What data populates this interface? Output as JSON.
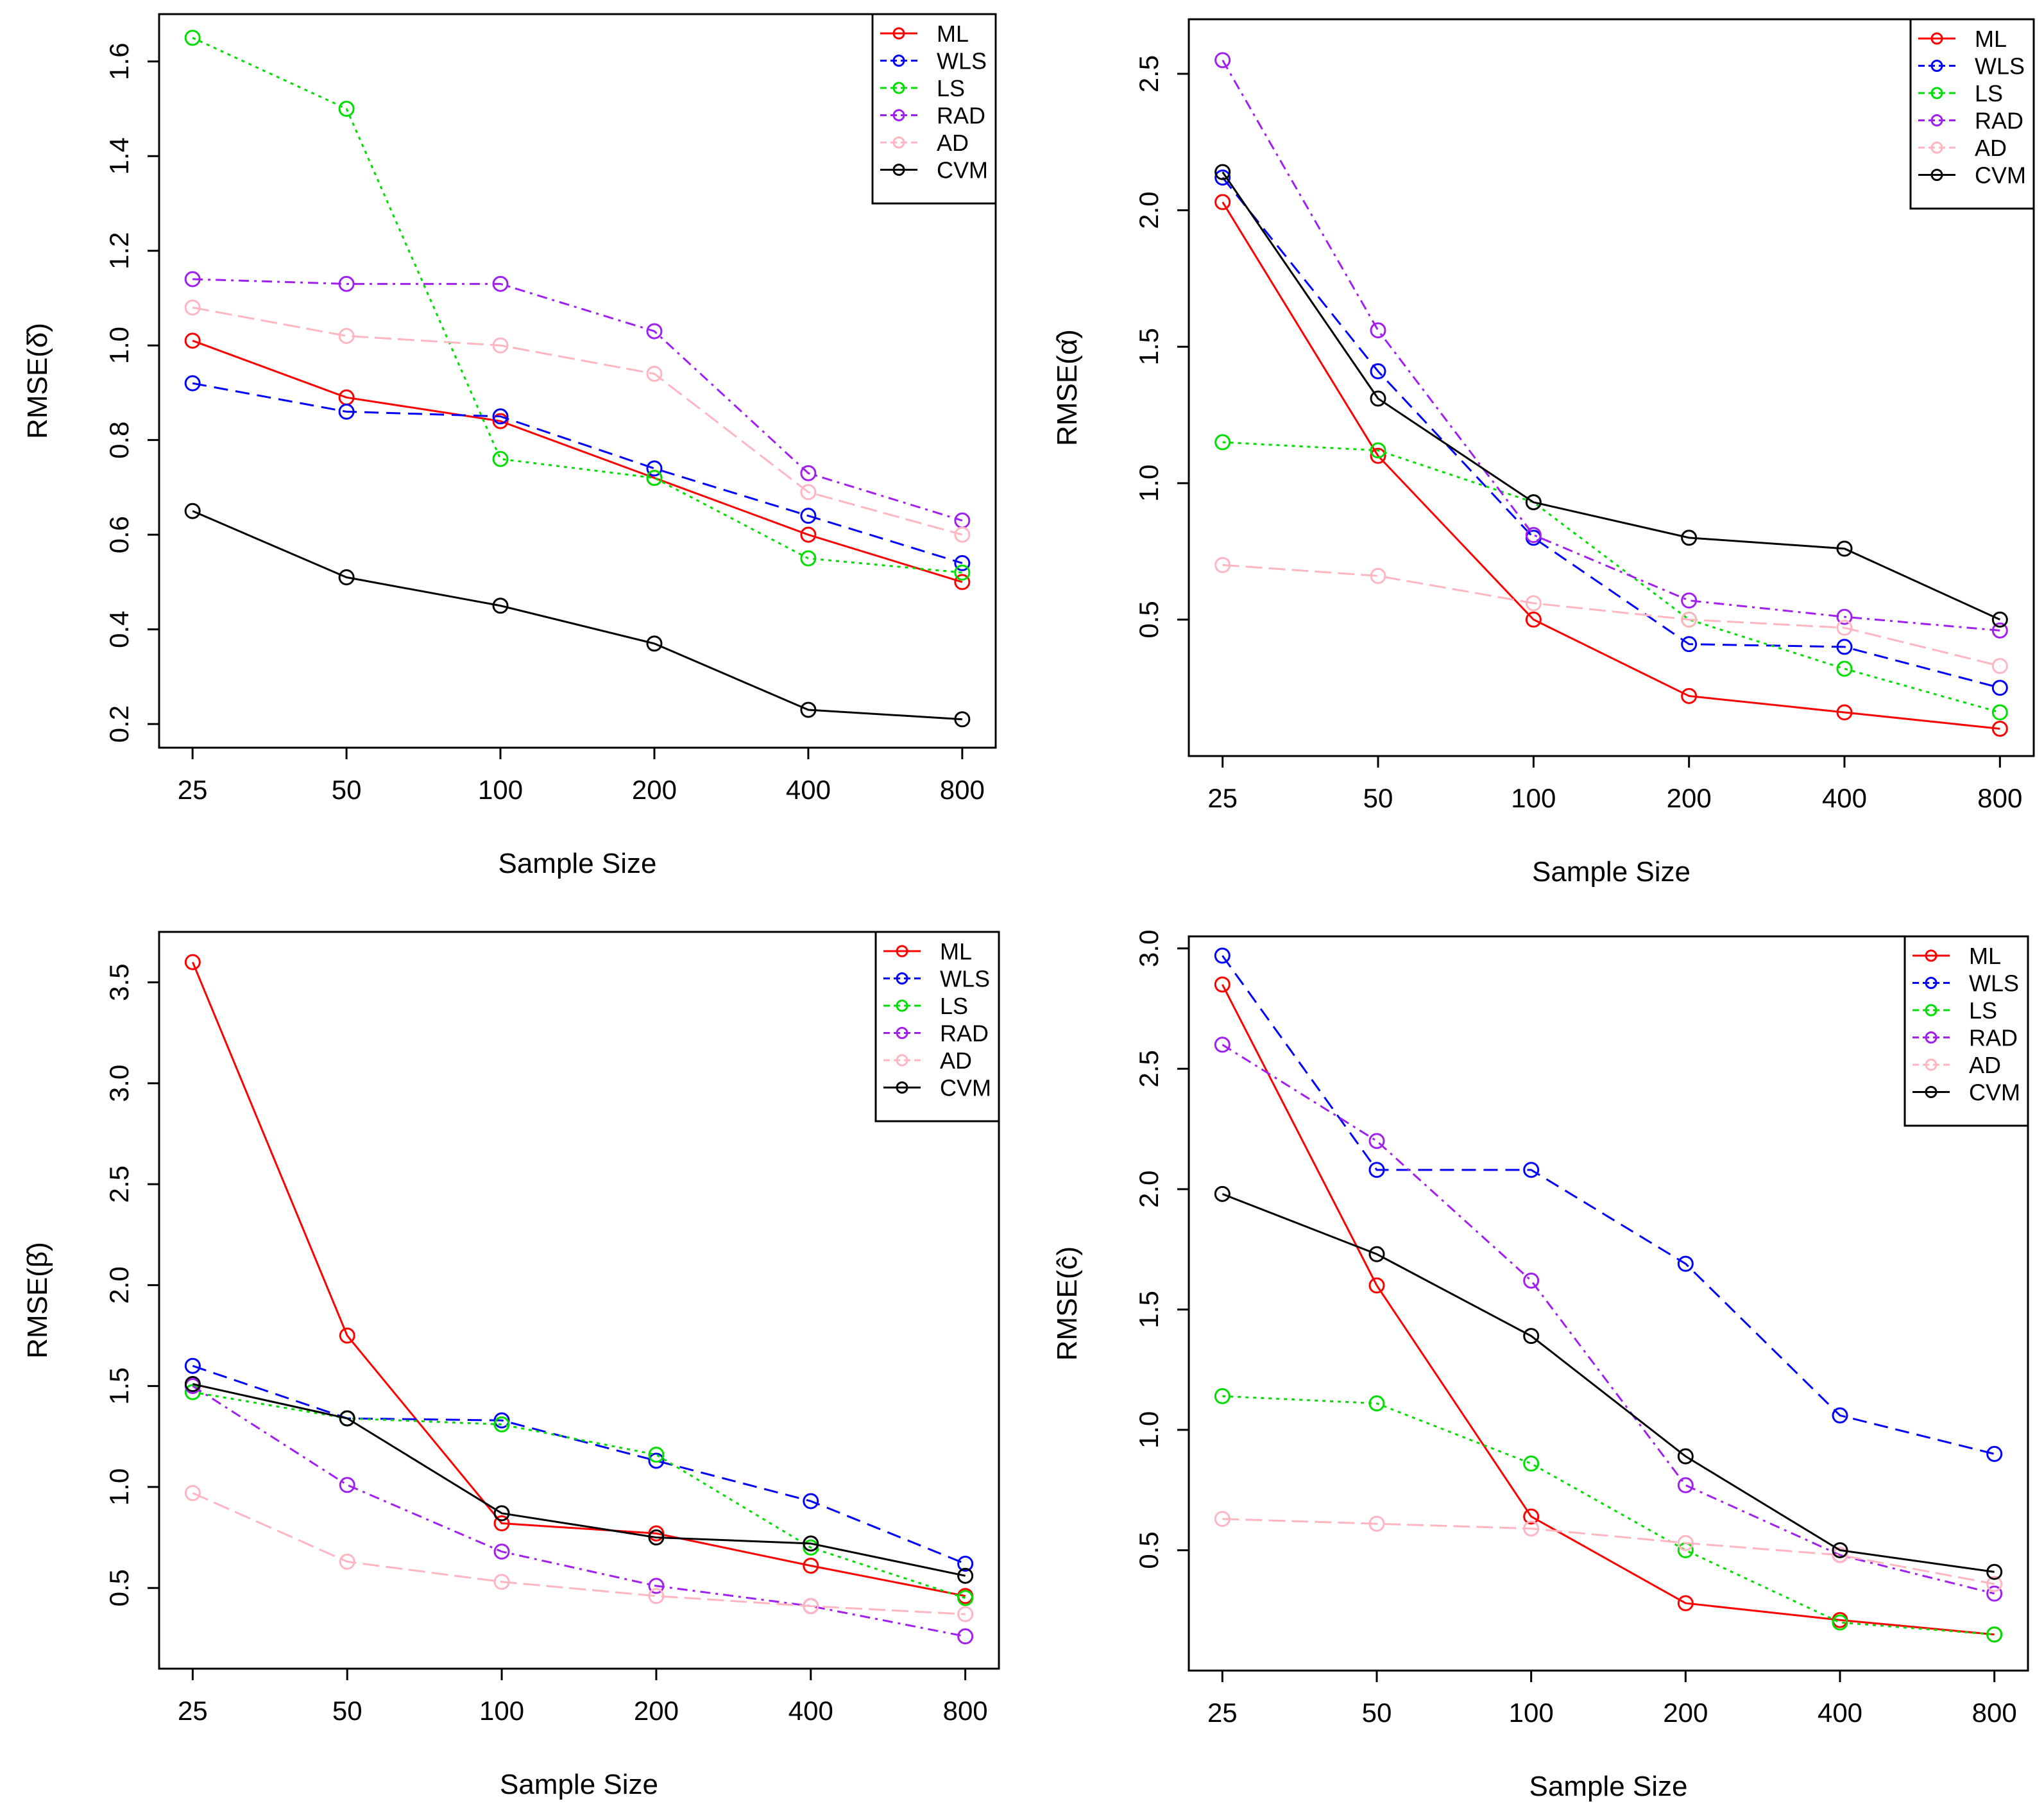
{
  "colors": {
    "ML": "#ff0000",
    "WLS": "#0000ff",
    "LS": "#00dd00",
    "RAD": "#a020f0",
    "AD": "#ffb6c1",
    "CVM": "#000000"
  },
  "chart_data": [
    {
      "type": "line",
      "xlabel": "Sample Size",
      "ylabel": "RMSE(δ̂)",
      "categories": [
        "25",
        "50",
        "100",
        "200",
        "400",
        "800"
      ],
      "ylim": [
        0.15,
        1.7
      ],
      "yticks": [
        "0.2",
        "0.4",
        "0.6",
        "0.8",
        "1.0",
        "1.2",
        "1.4",
        "1.6"
      ],
      "legend": [
        "ML",
        "WLS",
        "LS",
        "RAD",
        "AD",
        "CVM"
      ],
      "legend_position": "top-right",
      "series": [
        {
          "name": "ML",
          "values": [
            1.01,
            0.89,
            0.84,
            0.72,
            0.6,
            0.5
          ]
        },
        {
          "name": "WLS",
          "values": [
            0.92,
            0.86,
            0.85,
            0.74,
            0.64,
            0.54
          ]
        },
        {
          "name": "LS",
          "values": [
            1.65,
            1.5,
            0.76,
            0.72,
            0.55,
            0.52
          ]
        },
        {
          "name": "RAD",
          "values": [
            1.14,
            1.13,
            1.13,
            1.03,
            0.73,
            0.63
          ]
        },
        {
          "name": "AD",
          "values": [
            1.08,
            1.02,
            1.0,
            0.94,
            0.69,
            0.6
          ]
        },
        {
          "name": "CVM",
          "values": [
            0.65,
            0.51,
            0.45,
            0.37,
            0.23,
            0.21
          ]
        }
      ]
    },
    {
      "type": "line",
      "xlabel": "Sample Size",
      "ylabel": "RMSE(α̂)",
      "categories": [
        "25",
        "50",
        "100",
        "200",
        "400",
        "800"
      ],
      "ylim": [
        0.0,
        2.7
      ],
      "yticks": [
        "0.5",
        "1.0",
        "1.5",
        "2.0",
        "2.5"
      ],
      "legend": [
        "ML",
        "WLS",
        "LS",
        "RAD",
        "AD",
        "CVM"
      ],
      "legend_position": "top-right",
      "series": [
        {
          "name": "ML",
          "values": [
            2.03,
            1.1,
            0.5,
            0.22,
            0.16,
            0.1
          ]
        },
        {
          "name": "WLS",
          "values": [
            2.12,
            1.41,
            0.8,
            0.41,
            0.4,
            0.25
          ]
        },
        {
          "name": "LS",
          "values": [
            1.15,
            1.12,
            0.93,
            0.5,
            0.32,
            0.16
          ]
        },
        {
          "name": "RAD",
          "values": [
            2.55,
            1.56,
            0.81,
            0.57,
            0.51,
            0.46
          ]
        },
        {
          "name": "AD",
          "values": [
            0.7,
            0.66,
            0.56,
            0.5,
            0.47,
            0.33
          ]
        },
        {
          "name": "CVM",
          "values": [
            2.14,
            1.31,
            0.93,
            0.8,
            0.76,
            0.5
          ]
        }
      ]
    },
    {
      "type": "line",
      "xlabel": "Sample Size",
      "ylabel": "RMSE(β̂)",
      "categories": [
        "25",
        "50",
        "100",
        "200",
        "400",
        "800"
      ],
      "ylim": [
        0.1,
        3.75
      ],
      "yticks": [
        "0.5",
        "1.0",
        "1.5",
        "2.0",
        "2.5",
        "3.0",
        "3.5"
      ],
      "legend": [
        "ML",
        "WLS",
        "LS",
        "RAD",
        "AD",
        "CVM"
      ],
      "legend_position": "top-right",
      "series": [
        {
          "name": "ML",
          "values": [
            3.6,
            1.75,
            0.82,
            0.77,
            0.61,
            0.46
          ]
        },
        {
          "name": "WLS",
          "values": [
            1.6,
            1.34,
            1.33,
            1.13,
            0.93,
            0.62
          ]
        },
        {
          "name": "LS",
          "values": [
            1.47,
            1.34,
            1.31,
            1.16,
            0.7,
            0.45
          ]
        },
        {
          "name": "RAD",
          "values": [
            1.5,
            1.01,
            0.68,
            0.51,
            0.41,
            0.26
          ]
        },
        {
          "name": "AD",
          "values": [
            0.97,
            0.63,
            0.53,
            0.46,
            0.41,
            0.37
          ]
        },
        {
          "name": "CVM",
          "values": [
            1.51,
            1.34,
            0.87,
            0.75,
            0.72,
            0.56
          ]
        }
      ]
    },
    {
      "type": "line",
      "xlabel": "Sample Size",
      "ylabel": "RMSE(ĉ)",
      "categories": [
        "25",
        "50",
        "100",
        "200",
        "400",
        "800"
      ],
      "ylim": [
        0.0,
        3.05
      ],
      "yticks": [
        "0.5",
        "1.0",
        "1.5",
        "2.0",
        "2.5",
        "3.0"
      ],
      "legend": [
        "ML",
        "WLS",
        "LS",
        "RAD",
        "AD",
        "CVM"
      ],
      "legend_position": "top-right",
      "series": [
        {
          "name": "ML",
          "values": [
            2.85,
            1.6,
            0.64,
            0.28,
            0.21,
            0.15
          ]
        },
        {
          "name": "WLS",
          "values": [
            2.97,
            2.08,
            2.08,
            1.69,
            1.06,
            0.9
          ]
        },
        {
          "name": "LS",
          "values": [
            1.14,
            1.11,
            0.86,
            0.5,
            0.2,
            0.15
          ]
        },
        {
          "name": "RAD",
          "values": [
            2.6,
            2.2,
            1.62,
            0.77,
            0.48,
            0.32
          ]
        },
        {
          "name": "AD",
          "values": [
            0.63,
            0.61,
            0.59,
            0.53,
            0.48,
            0.36
          ]
        },
        {
          "name": "CVM",
          "values": [
            1.98,
            1.73,
            1.39,
            0.89,
            0.5,
            0.41
          ]
        }
      ]
    }
  ]
}
